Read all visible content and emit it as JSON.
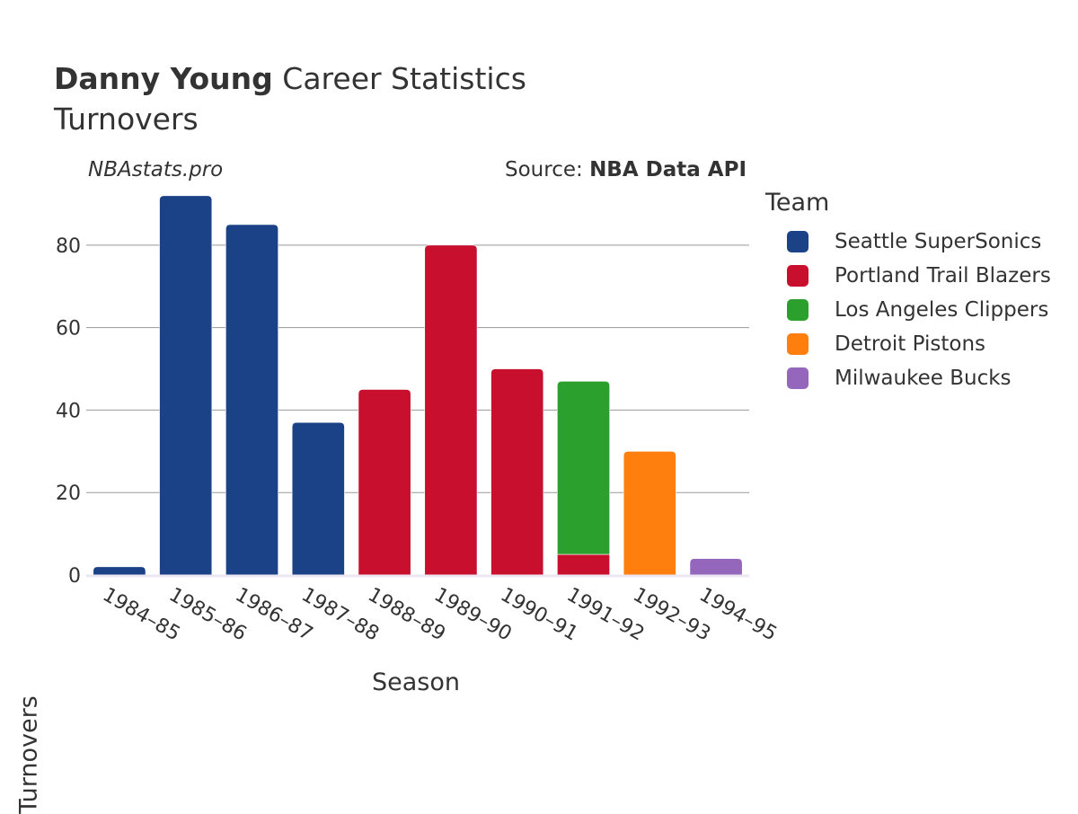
{
  "header": {
    "title_bold": "Danny Young",
    "title_rest": " Career Statistics",
    "subtitle": "Turnovers",
    "watermark": "NBAstats.pro",
    "source_prefix": "Source: ",
    "source_bold": "NBA Data API"
  },
  "chart_data": {
    "type": "bar",
    "stacked": true,
    "xlabel": "Season",
    "ylabel": "Turnovers",
    "ylim": [
      0,
      95
    ],
    "yticks": [
      0,
      20,
      40,
      60,
      80
    ],
    "grid": true,
    "legend_title": "Team",
    "legend_position": "right",
    "categories": [
      "1984–85",
      "1985–86",
      "1986–87",
      "1987–88",
      "1988–89",
      "1989–90",
      "1990–91",
      "1991–92",
      "1992–93",
      "1994–95"
    ],
    "series": [
      {
        "name": "Seattle SuperSonics",
        "color": "#1b4186",
        "values": [
          2,
          92,
          85,
          37,
          0,
          0,
          0,
          0,
          0,
          0
        ]
      },
      {
        "name": "Portland Trail Blazers",
        "color": "#c8102e",
        "values": [
          0,
          0,
          0,
          0,
          45,
          80,
          50,
          5,
          0,
          0
        ]
      },
      {
        "name": "Los Angeles Clippers",
        "color": "#2ca02c",
        "values": [
          0,
          0,
          0,
          0,
          0,
          0,
          0,
          42,
          0,
          0
        ]
      },
      {
        "name": "Detroit Pistons",
        "color": "#ff7f0e",
        "values": [
          0,
          0,
          0,
          0,
          0,
          0,
          0,
          0,
          30,
          0
        ]
      },
      {
        "name": "Milwaukee Bucks",
        "color": "#9467bd",
        "values": [
          0,
          0,
          0,
          0,
          0,
          0,
          0,
          0,
          0,
          4
        ]
      }
    ]
  }
}
